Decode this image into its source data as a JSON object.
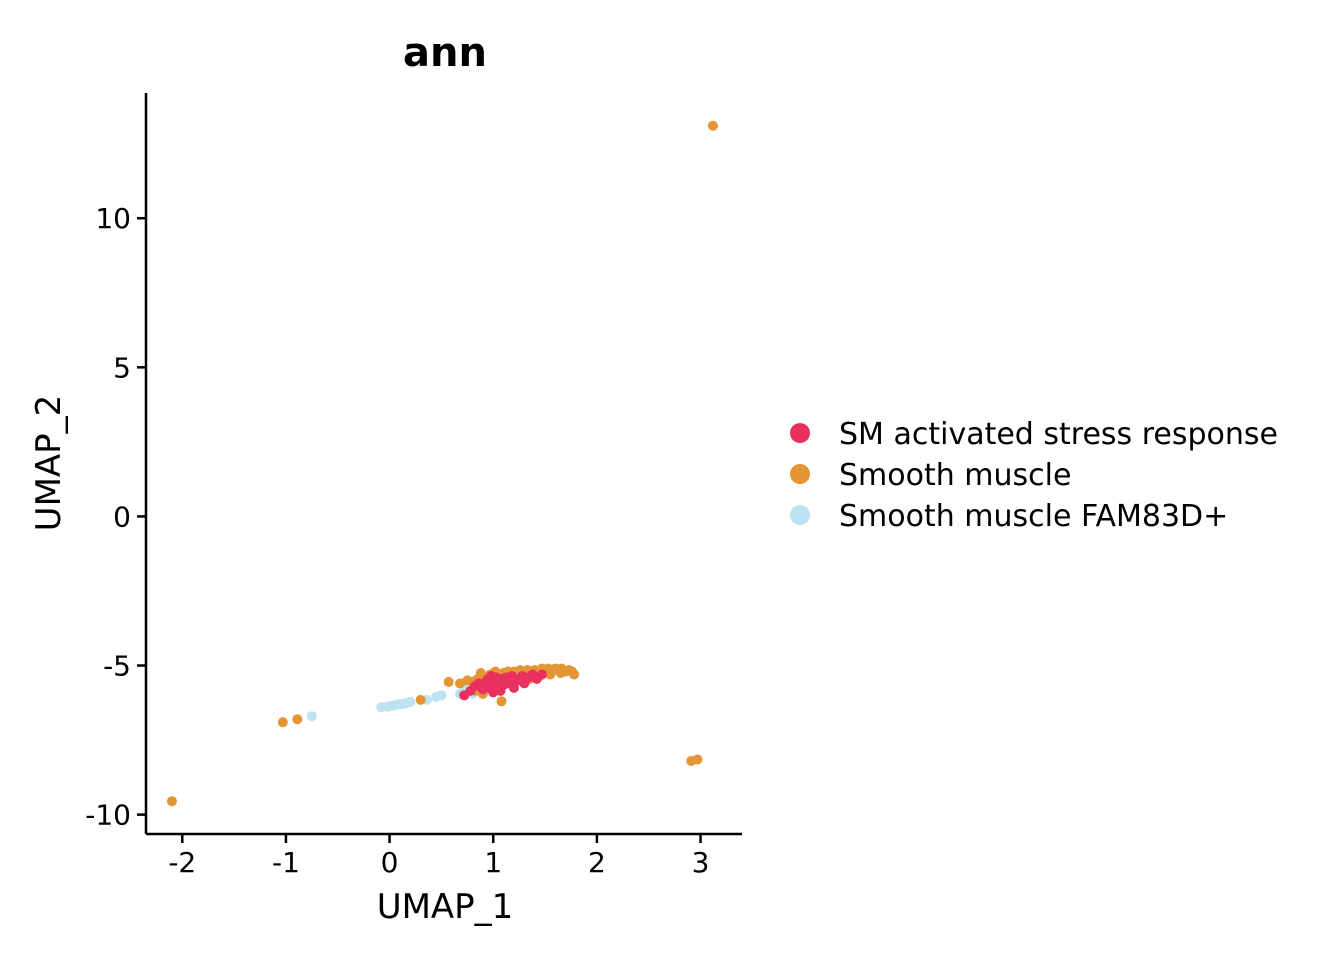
{
  "chart_data": {
    "type": "scatter",
    "title": "ann",
    "xlabel": "UMAP_1",
    "ylabel": "UMAP_2",
    "xlim": [
      -2.35,
      3.4
    ],
    "ylim": [
      -10.65,
      14.2
    ],
    "xticks": [
      -2,
      -1,
      0,
      1,
      2,
      3
    ],
    "xtick_labels": [
      "-2",
      "-1",
      "0",
      "1",
      "2",
      "3"
    ],
    "yticks": [
      -10,
      -5,
      0,
      5,
      10
    ],
    "ytick_labels": [
      "-10",
      "-5",
      "0",
      "5",
      "10"
    ],
    "grid": false,
    "legend_position": "right",
    "series": [
      {
        "name": "SM activated stress response",
        "color": "#E8315E",
        "points": [
          [
            0.72,
            -6.0
          ],
          [
            0.78,
            -5.85
          ],
          [
            0.82,
            -5.7
          ],
          [
            0.86,
            -5.6
          ],
          [
            0.9,
            -5.8
          ],
          [
            0.93,
            -5.55
          ],
          [
            0.96,
            -5.75
          ],
          [
            1.0,
            -5.9
          ],
          [
            1.02,
            -5.5
          ],
          [
            1.05,
            -5.7
          ],
          [
            1.08,
            -5.45
          ],
          [
            1.1,
            -5.65
          ],
          [
            1.12,
            -5.4
          ],
          [
            1.15,
            -5.6
          ],
          [
            1.18,
            -5.35
          ],
          [
            1.2,
            -5.75
          ],
          [
            1.24,
            -5.5
          ],
          [
            1.28,
            -5.35
          ],
          [
            1.3,
            -5.6
          ],
          [
            1.34,
            -5.4
          ],
          [
            1.38,
            -5.3
          ],
          [
            1.42,
            -5.45
          ],
          [
            1.47,
            -5.3
          ],
          [
            1.03,
            -5.4
          ],
          [
            0.95,
            -5.45
          ],
          [
            1.13,
            -5.55
          ],
          [
            1.25,
            -5.45
          ],
          [
            0.88,
            -5.65
          ],
          [
            1.07,
            -5.85
          ],
          [
            0.98,
            -5.35
          ]
        ]
      },
      {
        "name": "Smooth muscle",
        "color": "#E39633",
        "points": [
          [
            3.12,
            13.1
          ],
          [
            2.97,
            -8.15
          ],
          [
            2.91,
            -8.2
          ],
          [
            -2.1,
            -9.55
          ],
          [
            -1.03,
            -6.9
          ],
          [
            -0.89,
            -6.8
          ],
          [
            0.3,
            -6.15
          ],
          [
            0.57,
            -5.55
          ],
          [
            1.08,
            -6.2
          ],
          [
            0.68,
            -5.6
          ],
          [
            0.75,
            -5.5
          ],
          [
            0.8,
            -5.55
          ],
          [
            0.85,
            -5.45
          ],
          [
            0.88,
            -5.25
          ],
          [
            0.92,
            -5.4
          ],
          [
            0.97,
            -5.3
          ],
          [
            1.0,
            -5.6
          ],
          [
            1.02,
            -5.2
          ],
          [
            1.06,
            -5.35
          ],
          [
            1.1,
            -5.25
          ],
          [
            1.14,
            -5.2
          ],
          [
            1.17,
            -5.45
          ],
          [
            1.2,
            -5.2
          ],
          [
            1.23,
            -5.3
          ],
          [
            1.26,
            -5.15
          ],
          [
            1.3,
            -5.25
          ],
          [
            1.33,
            -5.15
          ],
          [
            1.36,
            -5.3
          ],
          [
            1.4,
            -5.15
          ],
          [
            1.44,
            -5.2
          ],
          [
            1.47,
            -5.1
          ],
          [
            1.5,
            -5.25
          ],
          [
            1.53,
            -5.1
          ],
          [
            1.56,
            -5.2
          ],
          [
            1.6,
            -5.1
          ],
          [
            1.63,
            -5.15
          ],
          [
            1.66,
            -5.1
          ],
          [
            1.7,
            -5.2
          ],
          [
            1.73,
            -5.15
          ],
          [
            1.76,
            -5.2
          ],
          [
            1.78,
            -5.3
          ],
          [
            1.45,
            -5.35
          ],
          [
            1.35,
            -5.45
          ],
          [
            1.55,
            -5.3
          ],
          [
            1.65,
            -5.25
          ],
          [
            0.9,
            -5.95
          ],
          [
            0.83,
            -5.85
          ],
          [
            0.93,
            -5.7
          ],
          [
            1.28,
            -5.5
          ],
          [
            1.18,
            -5.6
          ]
        ]
      },
      {
        "name": "Smooth muscle FAM83D+",
        "color": "#BDE3F2",
        "points": [
          [
            -0.75,
            -6.7
          ],
          [
            -0.08,
            -6.4
          ],
          [
            -0.02,
            -6.38
          ],
          [
            0.02,
            -6.35
          ],
          [
            0.05,
            -6.33
          ],
          [
            0.08,
            -6.3
          ],
          [
            0.11,
            -6.3
          ],
          [
            0.14,
            -6.28
          ],
          [
            0.17,
            -6.25
          ],
          [
            0.2,
            -6.22
          ],
          [
            0.36,
            -6.15
          ],
          [
            0.45,
            -6.05
          ],
          [
            0.5,
            -6.0
          ],
          [
            0.68,
            -5.95
          ],
          [
            0.74,
            -5.9
          ],
          [
            0.78,
            -5.85
          ],
          [
            0.8,
            -5.95
          ],
          [
            0.72,
            -5.8
          ]
        ]
      }
    ]
  }
}
